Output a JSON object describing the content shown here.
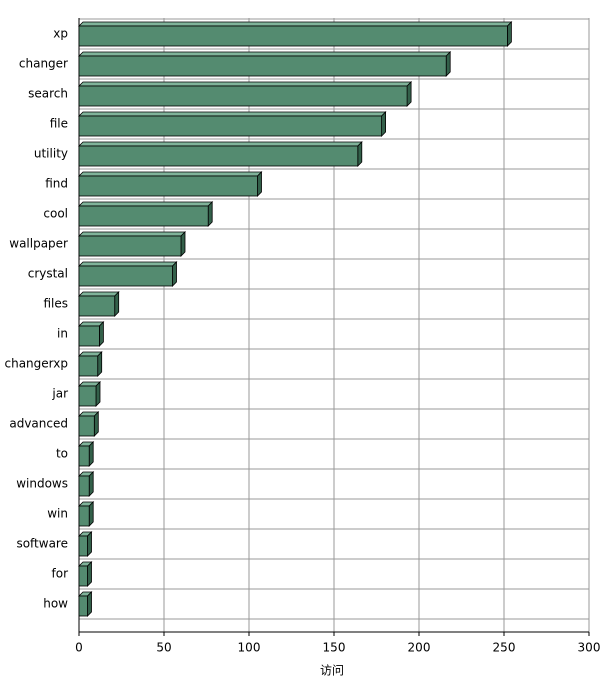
{
  "chart_data": {
    "type": "bar",
    "orientation": "horizontal",
    "categories": [
      "xp",
      "changer",
      "search",
      "file",
      "utility",
      "find",
      "cool",
      "wallpaper",
      "crystal",
      "files",
      "in",
      "changerxp",
      "jar",
      "advanced",
      "to",
      "windows",
      "win",
      "software",
      "for",
      "how"
    ],
    "values": [
      252,
      216,
      193,
      178,
      164,
      105,
      76,
      60,
      55,
      21,
      12,
      11,
      10,
      9,
      6,
      6,
      6,
      5,
      5,
      5
    ],
    "color": "#548b70",
    "x_label": "访问",
    "xlim": [
      0,
      300
    ],
    "xticks": [
      0,
      50,
      100,
      150,
      200,
      250,
      300
    ],
    "grid": true
  }
}
